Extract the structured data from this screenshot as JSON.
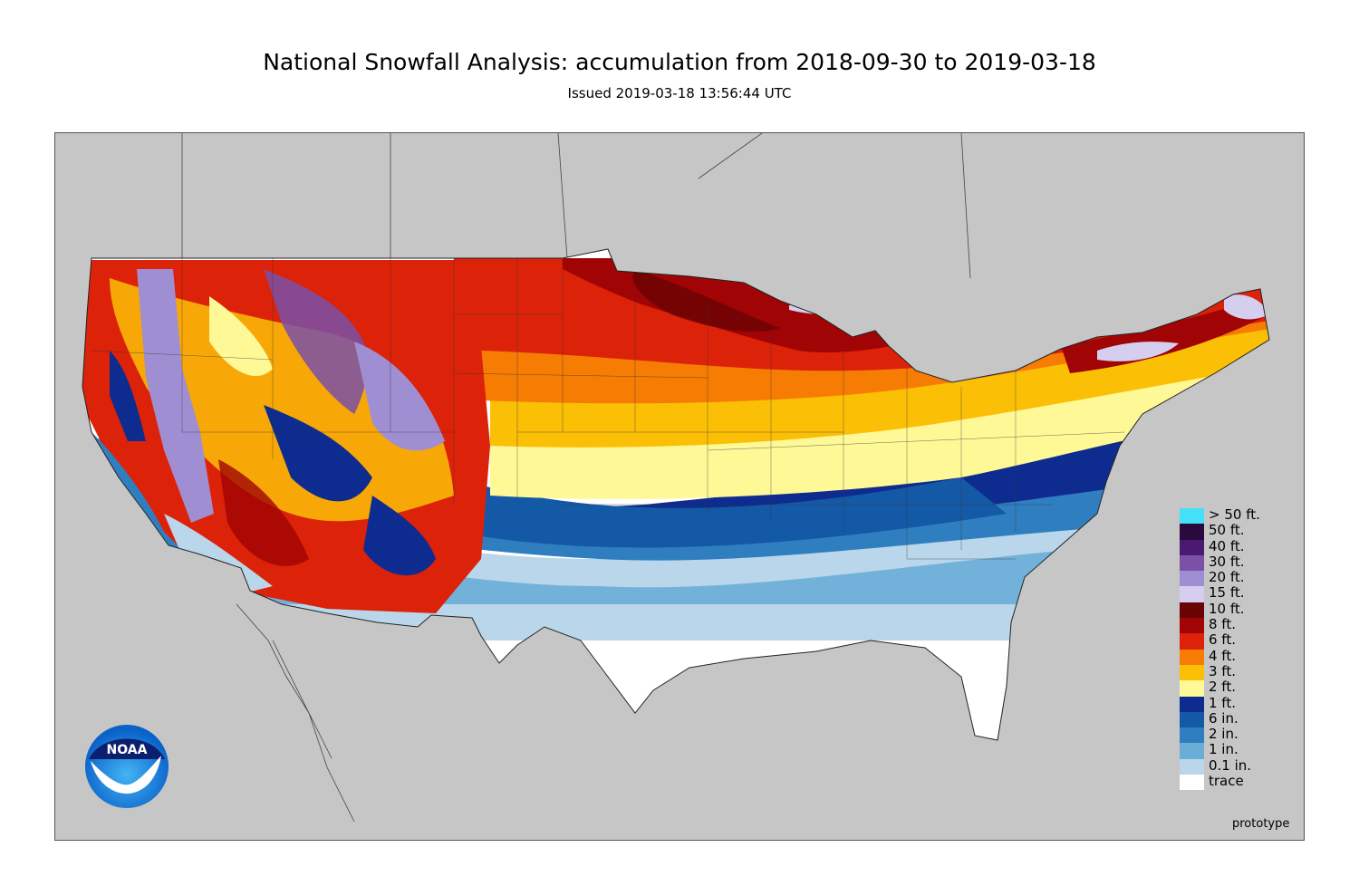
{
  "header": {
    "title": "National Snowfall Analysis: accumulation from 2018-09-30 to 2019-03-18",
    "issued": "Issued 2019-03-18 13:56:44 UTC"
  },
  "legend": [
    {
      "label": "> 50 ft.",
      "color": "#44e0f7"
    },
    {
      "label": "50 ft.",
      "color": "#2a0a3e"
    },
    {
      "label": "40 ft.",
      "color": "#4a1a70"
    },
    {
      "label": "30 ft.",
      "color": "#7a50a8"
    },
    {
      "label": "20 ft.",
      "color": "#a08ed2"
    },
    {
      "label": "15 ft.",
      "color": "#d6ceee"
    },
    {
      "label": "10 ft.",
      "color": "#6a0404"
    },
    {
      "label": "8 ft.",
      "color": "#a00404"
    },
    {
      "label": "6 ft.",
      "color": "#dc2208"
    },
    {
      "label": "4 ft.",
      "color": "#f67c04"
    },
    {
      "label": "3 ft.",
      "color": "#fbbf06"
    },
    {
      "label": "2 ft.",
      "color": "#fef896"
    },
    {
      "label": "1 ft.",
      "color": "#0e2c90"
    },
    {
      "label": "6 in.",
      "color": "#1459a6"
    },
    {
      "label": "2 in.",
      "color": "#2f7fc0"
    },
    {
      "label": "1 in.",
      "color": "#6aaed8"
    },
    {
      "label": "0.1 in.",
      "color": "#b9d6ea"
    },
    {
      "label": "trace",
      "color": "#ffffff"
    }
  ],
  "logo": {
    "text": "NOAA"
  },
  "footer": {
    "prototype": "prototype"
  },
  "colors": {
    "background_land": "#c6c6c6",
    "border": "#333333"
  }
}
